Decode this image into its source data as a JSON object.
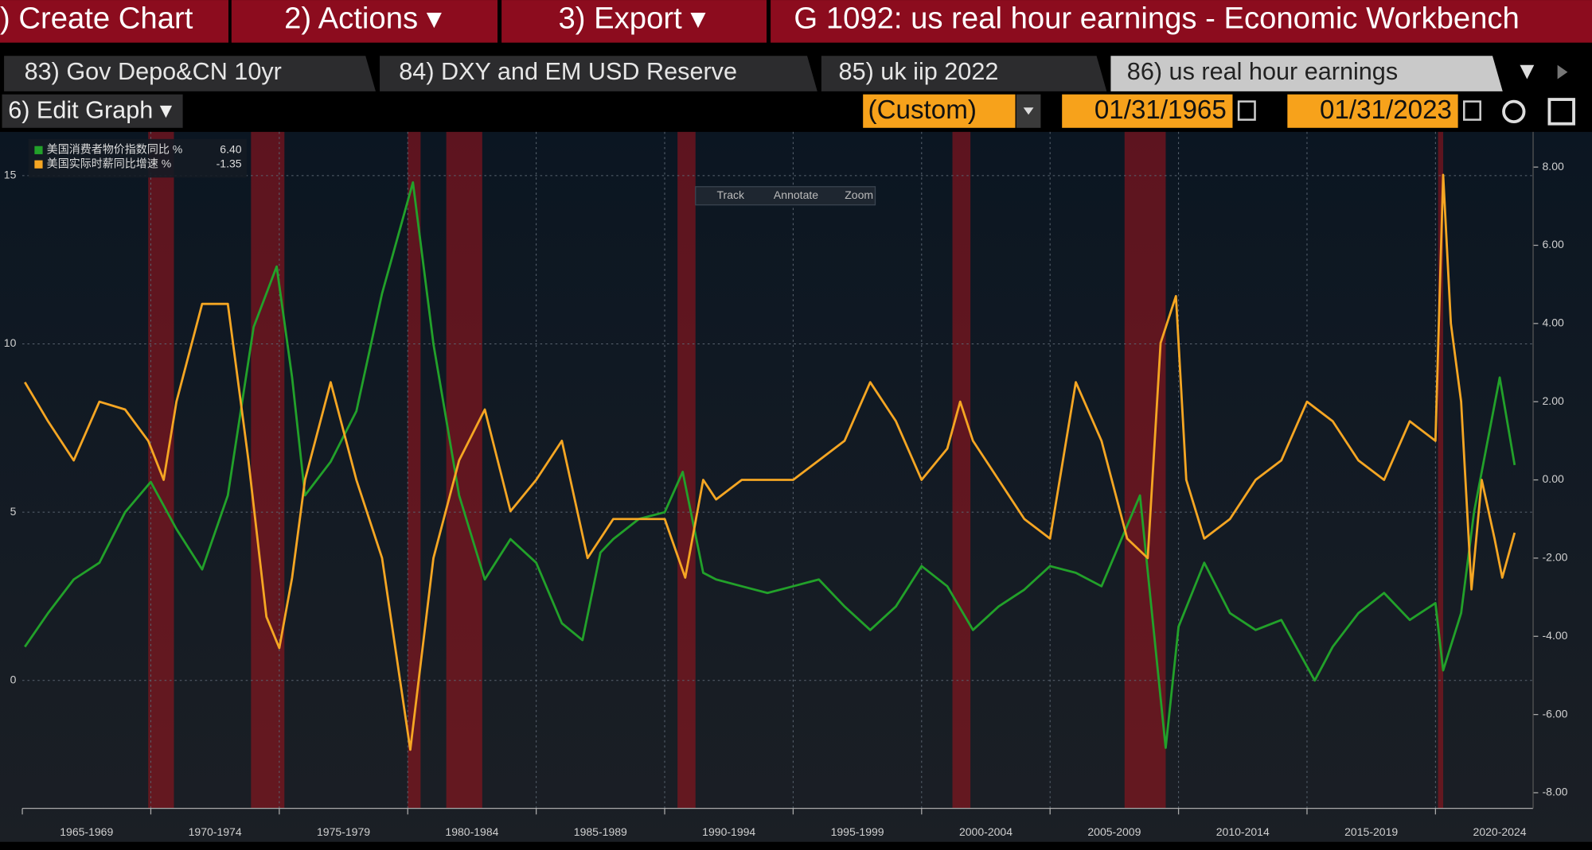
{
  "header": {
    "segments": [
      ") Create Chart",
      "2) Actions ▾",
      "3) Export ▾",
      "G 1092: us real hour earnings - Economic Workbench"
    ]
  },
  "tabs": [
    "83) Gov Depo&CN 10yr",
    "84) DXY and EM USD Reserve",
    "85) uk iip 2022",
    "86) us real hour earnings"
  ],
  "controls": {
    "edit_graph": "6) Edit Graph ▾",
    "range": "(Custom)",
    "start_date": "01/31/1965",
    "end_date": "01/31/2023"
  },
  "toolbar": [
    "Track",
    "Annotate",
    "Zoom"
  ],
  "chart_data": {
    "type": "line",
    "xlim": [
      1965.0,
      2023.8
    ],
    "xticks": [
      {
        "value": 1967.5,
        "label": "1965-1969"
      },
      {
        "value": 1972.5,
        "label": "1970-1974"
      },
      {
        "value": 1977.5,
        "label": "1975-1979"
      },
      {
        "value": 1982.5,
        "label": "1980-1984"
      },
      {
        "value": 1987.5,
        "label": "1985-1989"
      },
      {
        "value": 1992.5,
        "label": "1990-1994"
      },
      {
        "value": 1997.5,
        "label": "1995-1999"
      },
      {
        "value": 2002.5,
        "label": "2000-2004"
      },
      {
        "value": 2007.5,
        "label": "2005-2009"
      },
      {
        "value": 2012.5,
        "label": "2010-2014"
      },
      {
        "value": 2017.5,
        "label": "2015-2019"
      },
      {
        "value": 2022.5,
        "label": "2020-2024"
      }
    ],
    "ylim": [
      -3.8,
      16.3
    ],
    "yticks": [
      0,
      5,
      10,
      15
    ],
    "y2lim": [
      -8.4,
      8.9
    ],
    "y2ticks": [
      {
        "value": 8,
        "label": "8.00"
      },
      {
        "value": 6,
        "label": "6.00"
      },
      {
        "value": 4,
        "label": "4.00"
      },
      {
        "value": 2,
        "label": "2.00"
      },
      {
        "value": 0,
        "label": "0.00"
      },
      {
        "value": -2,
        "label": "-2.00"
      },
      {
        "value": -4,
        "label": "-4.00"
      },
      {
        "value": -6,
        "label": "-6.00"
      },
      {
        "value": -8,
        "label": "-8.00"
      }
    ],
    "grid": true,
    "legend": "top-left",
    "recessions": [
      [
        1969.9,
        1970.9
      ],
      [
        1973.9,
        1975.2
      ],
      [
        1980.0,
        1980.5
      ],
      [
        1981.5,
        1982.9
      ],
      [
        1990.5,
        1991.2
      ],
      [
        2001.2,
        2001.9
      ],
      [
        2007.9,
        2009.5
      ],
      [
        2020.1,
        2020.3
      ]
    ],
    "recession_color": "#a3141e",
    "series": [
      {
        "name": "美国消费者物价指数同比 %",
        "legend_value": "6.40",
        "color": "#22a12a",
        "axis": "y",
        "x": [
          1965.1,
          1966,
          1967,
          1968,
          1969,
          1970,
          1971,
          1972,
          1973,
          1974,
          1974.9,
          1975.5,
          1976,
          1977,
          1978,
          1979,
          1980.2,
          1981,
          1982,
          1983,
          1984,
          1985,
          1986,
          1986.8,
          1987.5,
          1988,
          1989,
          1990,
          1990.7,
          1991.5,
          1992,
          1993,
          1994,
          1995,
          1996,
          1997,
          1998,
          1999,
          2000,
          2001,
          2002,
          2003,
          2004,
          2005,
          2006,
          2007,
          2008.5,
          2009.5,
          2010,
          2011,
          2012,
          2013,
          2014,
          2015.3,
          2016,
          2017,
          2018,
          2019,
          2020,
          2020.3,
          2021,
          2021.5,
          2022.5,
          2023.08
        ],
        "values": [
          1.0,
          2.0,
          3.0,
          3.5,
          5.0,
          5.9,
          4.5,
          3.3,
          5.5,
          10.5,
          12.3,
          9.0,
          5.5,
          6.5,
          8.0,
          11.5,
          14.8,
          10.0,
          5.5,
          3.0,
          4.2,
          3.5,
          1.7,
          1.2,
          3.8,
          4.2,
          4.8,
          5.0,
          6.2,
          3.2,
          3.0,
          2.8,
          2.6,
          2.8,
          3.0,
          2.2,
          1.5,
          2.2,
          3.4,
          2.8,
          1.5,
          2.2,
          2.7,
          3.4,
          3.2,
          2.8,
          5.5,
          -2.0,
          1.6,
          3.5,
          2.0,
          1.5,
          1.8,
          0.0,
          1.0,
          2.0,
          2.6,
          1.8,
          2.3,
          0.3,
          2.0,
          5.0,
          9.0,
          6.4
        ]
      },
      {
        "name": "美国实际时薪同比增速 %",
        "legend_value": "-1.35",
        "color": "#f5a623",
        "axis": "y2",
        "x": [
          1965.1,
          1966,
          1967,
          1968,
          1969,
          1969.9,
          1970.5,
          1971,
          1972,
          1973,
          1973.8,
          1974.5,
          1975,
          1975.5,
          1976,
          1977,
          1978,
          1979,
          1980.1,
          1981,
          1982,
          1983,
          1984,
          1985,
          1986,
          1987,
          1988,
          1989,
          1990,
          1990.8,
          1991.5,
          1992,
          1993,
          1994,
          1995,
          1996,
          1997,
          1998,
          1999,
          2000,
          2001,
          2001.5,
          2002,
          2003,
          2004,
          2005,
          2006,
          2007,
          2008,
          2008.8,
          2009.3,
          2009.9,
          2010.3,
          2011,
          2012,
          2013,
          2014,
          2015,
          2016,
          2017,
          2018,
          2019,
          2020,
          2020.3,
          2020.6,
          2021,
          2021.4,
          2021.8,
          2022.3,
          2022.6,
          2023.08
        ],
        "values": [
          2.5,
          1.5,
          0.5,
          2.0,
          1.8,
          1.0,
          0,
          2.0,
          4.5,
          4.5,
          0.5,
          -3.5,
          -4.3,
          -2.5,
          0,
          2.5,
          0,
          -2.0,
          -6.9,
          -2.0,
          0.5,
          1.8,
          -0.8,
          0,
          1.0,
          -2.0,
          -1.0,
          -1.0,
          -1.0,
          -2.5,
          0,
          -0.5,
          0,
          0,
          0,
          0.5,
          1.0,
          2.5,
          1.5,
          0,
          0.8,
          2.0,
          1.0,
          0,
          -1.0,
          -1.5,
          2.5,
          1.0,
          -1.5,
          -2.0,
          3.5,
          4.7,
          0,
          -1.5,
          -1.0,
          0,
          0.5,
          2.0,
          1.5,
          0.5,
          0,
          1.5,
          1.0,
          7.8,
          4.0,
          2.0,
          -2.8,
          0,
          -1.5,
          -2.5,
          -1.35
        ]
      }
    ]
  }
}
